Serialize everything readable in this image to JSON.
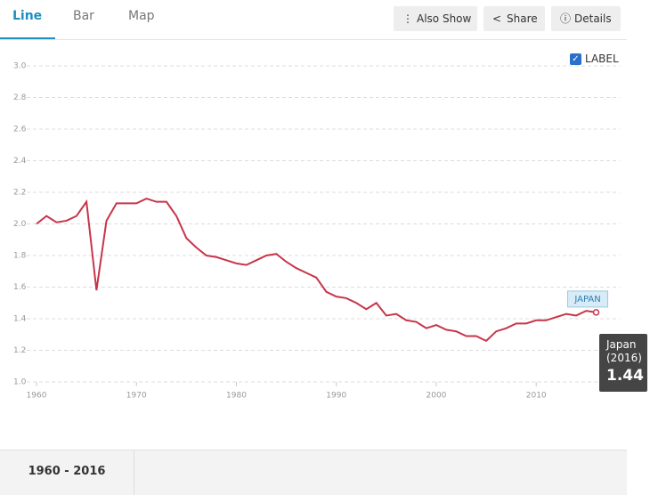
{
  "tabs": [
    "Line",
    "Bar",
    "Map"
  ],
  "buttons": [
    "Also Show",
    "Share",
    "Details"
  ],
  "label_toggle": "LABEL",
  "chart_data": {
    "type": "line",
    "x": [
      1960,
      1961,
      1962,
      1963,
      1964,
      1965,
      1966,
      1967,
      1968,
      1969,
      1970,
      1971,
      1972,
      1973,
      1974,
      1975,
      1976,
      1977,
      1978,
      1979,
      1980,
      1981,
      1982,
      1983,
      1984,
      1985,
      1986,
      1987,
      1988,
      1989,
      1990,
      1991,
      1992,
      1993,
      1994,
      1995,
      1996,
      1997,
      1998,
      1999,
      2000,
      2001,
      2002,
      2003,
      2004,
      2005,
      2006,
      2007,
      2008,
      2009,
      2010,
      2011,
      2012,
      2013,
      2014,
      2015,
      2016
    ],
    "series": [
      {
        "name": "JAPAN",
        "color": "#c7354a",
        "values": [
          2.0,
          2.05,
          2.01,
          2.02,
          2.05,
          2.14,
          1.58,
          2.02,
          2.13,
          2.13,
          2.13,
          2.16,
          2.14,
          2.14,
          2.05,
          1.91,
          1.85,
          1.8,
          1.79,
          1.77,
          1.75,
          1.74,
          1.77,
          1.8,
          1.81,
          1.76,
          1.72,
          1.69,
          1.66,
          1.57,
          1.54,
          1.53,
          1.5,
          1.46,
          1.5,
          1.42,
          1.43,
          1.39,
          1.38,
          1.34,
          1.36,
          1.33,
          1.32,
          1.29,
          1.29,
          1.26,
          1.32,
          1.34,
          1.37,
          1.37,
          1.39,
          1.39,
          1.41,
          1.43,
          1.42,
          1.45,
          1.44
        ]
      }
    ],
    "xlim": [
      1960,
      2018
    ],
    "xticks": [
      1960,
      1970,
      1980,
      1990,
      2000,
      2010
    ],
    "ylim": [
      1,
      3
    ],
    "yticks": [
      {
        "value": 1,
        "label": "1.0"
      },
      {
        "value": 1.2,
        "label": "1.2"
      },
      {
        "value": 1.4,
        "label": "1.4"
      },
      {
        "value": 1.6,
        "label": "1.6"
      },
      {
        "value": 1.8,
        "label": "1.8"
      },
      {
        "value": 2,
        "label": "2.0"
      },
      {
        "value": 2.2,
        "label": "2.2"
      },
      {
        "value": 2.4,
        "label": "2.4"
      },
      {
        "value": 2.6,
        "label": "2.6"
      },
      {
        "value": 2.8,
        "label": "2.8"
      },
      {
        "value": 3,
        "label": "3.0"
      }
    ],
    "grid": true,
    "tooltip": {
      "name": "Japan",
      "period": "(2016)"
    }
  },
  "footer": {
    "range": "1960 - 2016"
  }
}
